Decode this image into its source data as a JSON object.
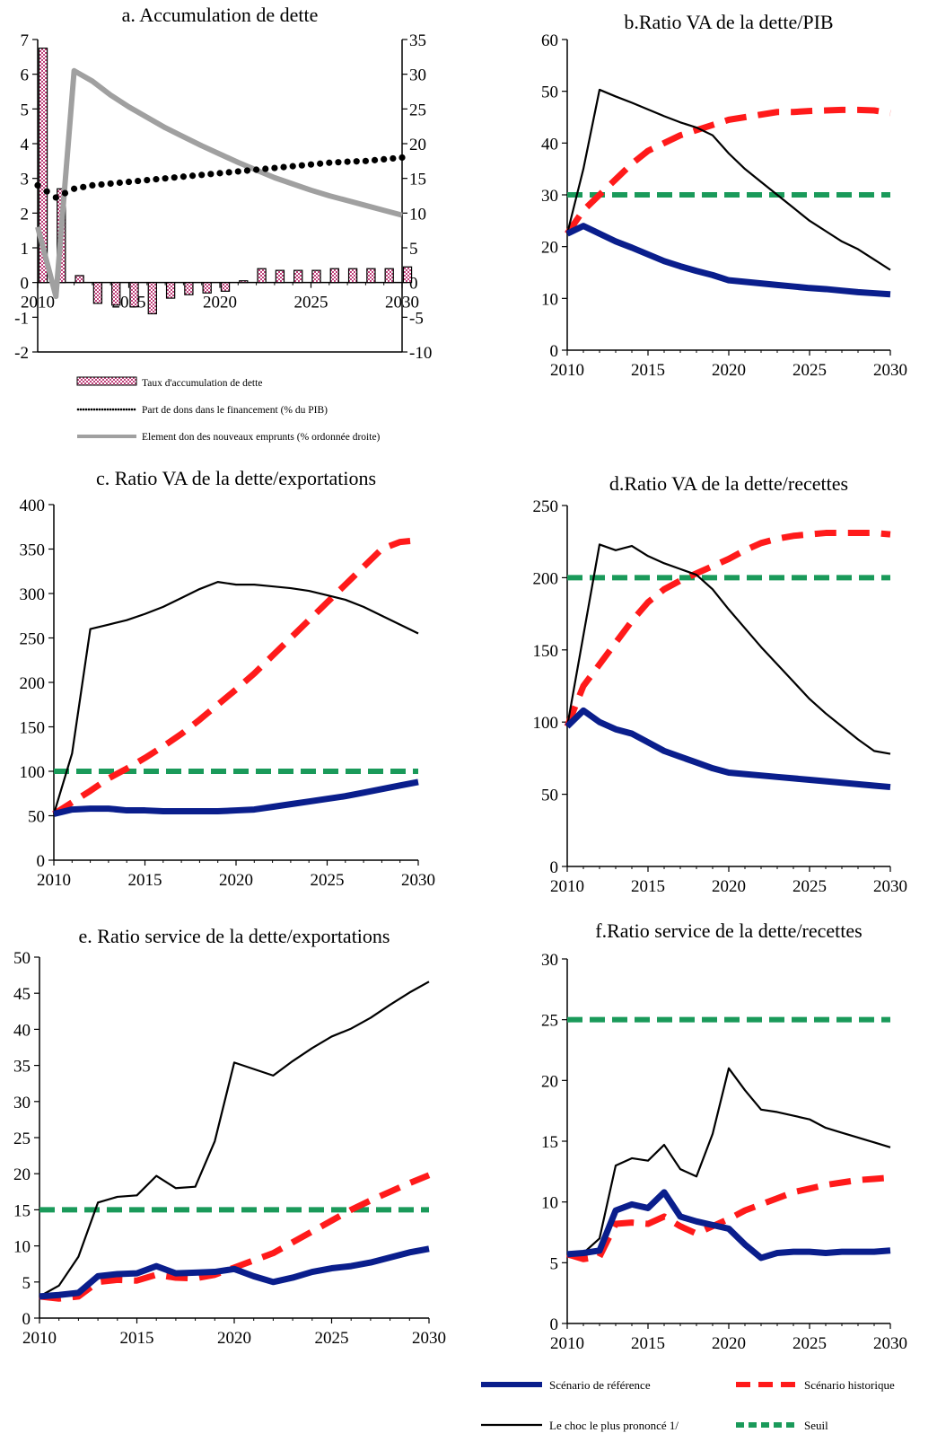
{
  "chart_data": [
    {
      "id": "a",
      "type": "bar",
      "title": "a. Accumulation de dette",
      "xlim": [
        2010,
        2030
      ],
      "xticks": [
        2010,
        2015,
        2020,
        2025,
        2030
      ],
      "ylim": [
        -2,
        7
      ],
      "yticks": [
        -2,
        -1,
        0,
        1,
        2,
        3,
        4,
        5,
        6,
        7
      ],
      "y2lim": [
        -10,
        35
      ],
      "y2ticks": [
        -10,
        -5,
        0,
        5,
        10,
        15,
        20,
        25,
        30,
        35
      ],
      "series": [
        {
          "name": "Taux d'accumulation de dette",
          "kind": "bar",
          "axis": "left",
          "color": "#c0407a",
          "x": [
            2010,
            2011,
            2012,
            2013,
            2014,
            2015,
            2016,
            2017,
            2018,
            2019,
            2020,
            2021,
            2022,
            2023,
            2024,
            2025,
            2026,
            2027,
            2028,
            2029,
            2030
          ],
          "values": [
            6.75,
            2.7,
            0.2,
            -0.6,
            -0.65,
            -0.7,
            -0.9,
            -0.45,
            -0.35,
            -0.3,
            -0.25,
            0.05,
            0.4,
            0.35,
            0.35,
            0.35,
            0.4,
            0.4,
            0.4,
            0.4,
            0.45
          ]
        },
        {
          "name": "Part de dons dans le financement (% du PIB)",
          "kind": "dotted",
          "axis": "left",
          "color": "#000000",
          "x": [
            2010,
            2011,
            2012,
            2013,
            2014,
            2015,
            2016,
            2017,
            2018,
            2019,
            2020,
            2021,
            2022,
            2023,
            2024,
            2025,
            2026,
            2027,
            2028,
            2029,
            2030
          ],
          "values": [
            2.8,
            2.45,
            2.7,
            2.8,
            2.85,
            2.9,
            2.95,
            3.0,
            3.05,
            3.1,
            3.15,
            3.2,
            3.25,
            3.3,
            3.35,
            3.4,
            3.45,
            3.48,
            3.5,
            3.55,
            3.6
          ]
        },
        {
          "name": "Element don des nouveaux emprunts (% ordonnée droite)",
          "kind": "line",
          "axis": "right",
          "color": "#a0a0a0",
          "x": [
            2010,
            2011,
            2012,
            2013,
            2014,
            2015,
            2016,
            2017,
            2018,
            2019,
            2020,
            2021,
            2022,
            2023,
            2024,
            2025,
            2026,
            2027,
            2028,
            2029,
            2030
          ],
          "values": [
            8,
            -2,
            30.5,
            29,
            27,
            25.3,
            23.8,
            22.3,
            21,
            19.7,
            18.5,
            17.3,
            16.2,
            15.1,
            14.2,
            13.3,
            12.5,
            11.8,
            11.1,
            10.4,
            9.7
          ]
        }
      ]
    },
    {
      "id": "b",
      "type": "line",
      "title": "b.Ratio VA de la dette/PIB",
      "xlim": [
        2010,
        2030
      ],
      "xticks": [
        2010,
        2015,
        2020,
        2025,
        2030
      ],
      "ylim": [
        0,
        60
      ],
      "yticks": [
        0,
        10,
        20,
        30,
        40,
        50,
        60
      ],
      "series": [
        {
          "role": "baseline",
          "x": [
            2010,
            2011,
            2012,
            2013,
            2014,
            2015,
            2016,
            2017,
            2018,
            2019,
            2020,
            2021,
            2022,
            2023,
            2024,
            2025,
            2026,
            2027,
            2028,
            2029,
            2030
          ],
          "values": [
            22.5,
            24,
            22.5,
            21,
            19.8,
            18.5,
            17.2,
            16.2,
            15.3,
            14.5,
            13.5,
            13.2,
            12.9,
            12.6,
            12.3,
            12,
            11.8,
            11.5,
            11.2,
            11,
            10.8
          ]
        },
        {
          "role": "historical",
          "x": [
            2010,
            2011,
            2012,
            2013,
            2014,
            2015,
            2016,
            2017,
            2018,
            2019,
            2020,
            2021,
            2022,
            2023,
            2024,
            2025,
            2026,
            2027,
            2028,
            2029,
            2030
          ],
          "values": [
            22.5,
            27,
            30,
            33,
            36,
            38.5,
            40,
            41.5,
            42.5,
            43.5,
            44.5,
            45,
            45.5,
            46,
            46,
            46.2,
            46.3,
            46.4,
            46.4,
            46.3,
            45.8
          ]
        },
        {
          "role": "shock",
          "x": [
            2010,
            2011,
            2012,
            2013,
            2014,
            2015,
            2016,
            2017,
            2018,
            2019,
            2020,
            2021,
            2022,
            2023,
            2024,
            2025,
            2026,
            2027,
            2028,
            2029,
            2030
          ],
          "values": [
            22.5,
            35,
            50.3,
            49,
            47.8,
            46.5,
            45.2,
            44,
            43,
            41.5,
            38,
            35,
            32.5,
            30,
            27.5,
            25,
            23,
            21,
            19.5,
            17.5,
            15.5
          ]
        },
        {
          "role": "threshold",
          "x": [
            2010,
            2030
          ],
          "values": [
            30,
            30
          ]
        }
      ]
    },
    {
      "id": "c",
      "type": "line",
      "title": "c. Ratio VA de la dette/exportations",
      "xlim": [
        2010,
        2030
      ],
      "xticks": [
        2010,
        2015,
        2020,
        2025,
        2030
      ],
      "ylim": [
        0,
        400
      ],
      "yticks": [
        0,
        50,
        100,
        150,
        200,
        250,
        300,
        350,
        400
      ],
      "series": [
        {
          "role": "baseline",
          "x": [
            2010,
            2011,
            2012,
            2013,
            2014,
            2015,
            2016,
            2017,
            2018,
            2019,
            2020,
            2021,
            2022,
            2023,
            2024,
            2025,
            2026,
            2027,
            2028,
            2029,
            2030
          ],
          "values": [
            52,
            57,
            58,
            58,
            56,
            56,
            55,
            55,
            55,
            55,
            56,
            57,
            60,
            63,
            66,
            69,
            72,
            76,
            80,
            84,
            88
          ]
        },
        {
          "role": "historical",
          "x": [
            2010,
            2011,
            2012,
            2013,
            2014,
            2015,
            2016,
            2017,
            2018,
            2019,
            2020,
            2021,
            2022,
            2023,
            2024,
            2025,
            2026,
            2027,
            2028,
            2029,
            2030
          ],
          "values": [
            52,
            65,
            78,
            92,
            103,
            115,
            128,
            142,
            158,
            175,
            192,
            210,
            230,
            250,
            270,
            290,
            310,
            330,
            350,
            358,
            360
          ]
        },
        {
          "role": "shock",
          "x": [
            2010,
            2011,
            2012,
            2013,
            2014,
            2015,
            2016,
            2017,
            2018,
            2019,
            2020,
            2021,
            2022,
            2023,
            2024,
            2025,
            2026,
            2027,
            2028,
            2029,
            2030
          ],
          "values": [
            52,
            120,
            260,
            265,
            270,
            277,
            285,
            295,
            305,
            313,
            310,
            310,
            308,
            306,
            303,
            298,
            293,
            285,
            275,
            265,
            255
          ]
        },
        {
          "role": "threshold",
          "x": [
            2010,
            2030
          ],
          "values": [
            100,
            100
          ]
        }
      ]
    },
    {
      "id": "d",
      "type": "line",
      "title": "d.Ratio VA de la dette/recettes",
      "xlim": [
        2010,
        2030
      ],
      "xticks": [
        2010,
        2015,
        2020,
        2025,
        2030
      ],
      "ylim": [
        0,
        250
      ],
      "yticks": [
        0,
        50,
        100,
        150,
        200,
        250
      ],
      "series": [
        {
          "role": "baseline",
          "x": [
            2010,
            2011,
            2012,
            2013,
            2014,
            2015,
            2016,
            2017,
            2018,
            2019,
            2020,
            2021,
            2022,
            2023,
            2024,
            2025,
            2026,
            2027,
            2028,
            2029,
            2030
          ],
          "values": [
            97,
            108,
            100,
            95,
            92,
            86,
            80,
            76,
            72,
            68,
            65,
            64,
            63,
            62,
            61,
            60,
            59,
            58,
            57,
            56,
            55
          ]
        },
        {
          "role": "historical",
          "x": [
            2010,
            2011,
            2012,
            2013,
            2014,
            2015,
            2016,
            2017,
            2018,
            2019,
            2020,
            2021,
            2022,
            2023,
            2024,
            2025,
            2026,
            2027,
            2028,
            2029,
            2030
          ],
          "values": [
            97,
            125,
            140,
            155,
            170,
            183,
            192,
            198,
            203,
            208,
            213,
            219,
            224,
            227,
            229,
            230,
            231,
            231,
            231,
            231,
            230
          ]
        },
        {
          "role": "shock",
          "x": [
            2010,
            2011,
            2012,
            2013,
            2014,
            2015,
            2016,
            2017,
            2018,
            2019,
            2020,
            2021,
            2022,
            2023,
            2024,
            2025,
            2026,
            2027,
            2028,
            2029,
            2030
          ],
          "values": [
            97,
            160,
            223,
            219,
            222,
            215,
            210,
            206,
            202,
            192,
            178,
            165,
            152,
            140,
            128,
            116,
            106,
            97,
            88,
            80,
            78
          ]
        },
        {
          "role": "threshold",
          "x": [
            2010,
            2030
          ],
          "values": [
            200,
            200
          ]
        }
      ]
    },
    {
      "id": "e",
      "type": "line",
      "title": "e. Ratio service de la dette/exportations",
      "xlim": [
        2010,
        2030
      ],
      "xticks": [
        2010,
        2015,
        2020,
        2025,
        2030
      ],
      "ylim": [
        0,
        50
      ],
      "yticks": [
        0,
        5,
        10,
        15,
        20,
        25,
        30,
        35,
        40,
        45,
        50
      ],
      "series": [
        {
          "role": "baseline",
          "x": [
            2010,
            2011,
            2012,
            2013,
            2014,
            2015,
            2016,
            2017,
            2018,
            2019,
            2020,
            2021,
            2022,
            2023,
            2024,
            2025,
            2026,
            2027,
            2028,
            2029,
            2030
          ],
          "values": [
            3,
            3.2,
            3.5,
            5.8,
            6.1,
            6.2,
            7.2,
            6.2,
            6.3,
            6.4,
            6.8,
            5.8,
            5,
            5.6,
            6.4,
            6.9,
            7.2,
            7.7,
            8.4,
            9.1,
            9.6
          ]
        },
        {
          "role": "historical",
          "x": [
            2010,
            2011,
            2012,
            2013,
            2014,
            2015,
            2016,
            2017,
            2018,
            2019,
            2020,
            2021,
            2022,
            2023,
            2024,
            2025,
            2026,
            2027,
            2028,
            2029,
            2030
          ],
          "values": [
            3,
            2.7,
            3,
            5,
            5.3,
            5.2,
            6,
            5.6,
            5.5,
            6,
            7,
            8,
            9,
            10.5,
            12,
            13.5,
            15,
            16.3,
            17.5,
            18.7,
            19.8
          ]
        },
        {
          "role": "shock",
          "x": [
            2010,
            2011,
            2012,
            2013,
            2014,
            2015,
            2016,
            2017,
            2018,
            2019,
            2020,
            2021,
            2022,
            2023,
            2024,
            2025,
            2026,
            2027,
            2028,
            2029,
            2030
          ],
          "values": [
            3,
            4.5,
            8.5,
            16,
            16.8,
            17,
            19.7,
            18,
            18.2,
            24.5,
            35.4,
            34.5,
            33.6,
            35.6,
            37.4,
            39,
            40.1,
            41.6,
            43.4,
            45.1,
            46.6
          ]
        },
        {
          "role": "threshold",
          "x": [
            2010,
            2030
          ],
          "values": [
            15,
            15
          ]
        }
      ]
    },
    {
      "id": "f",
      "type": "line",
      "title": "f.Ratio service de la dette/recettes",
      "xlim": [
        2010,
        2030
      ],
      "xticks": [
        2010,
        2015,
        2020,
        2025,
        2030
      ],
      "ylim": [
        0,
        30
      ],
      "yticks": [
        0,
        5,
        10,
        15,
        20,
        25,
        30
      ],
      "series": [
        {
          "role": "baseline",
          "x": [
            2010,
            2011,
            2012,
            2013,
            2014,
            2015,
            2016,
            2017,
            2018,
            2019,
            2020,
            2021,
            2022,
            2023,
            2024,
            2025,
            2026,
            2027,
            2028,
            2029,
            2030
          ],
          "values": [
            5.7,
            5.8,
            6,
            9.3,
            9.8,
            9.5,
            10.8,
            8.8,
            8.4,
            8.1,
            7.8,
            6.5,
            5.4,
            5.8,
            5.9,
            5.9,
            5.8,
            5.9,
            5.9,
            5.9,
            6
          ]
        },
        {
          "role": "historical",
          "x": [
            2010,
            2011,
            2012,
            2013,
            2014,
            2015,
            2016,
            2017,
            2018,
            2019,
            2020,
            2021,
            2022,
            2023,
            2024,
            2025,
            2026,
            2027,
            2028,
            2029,
            2030
          ],
          "values": [
            5.7,
            5.3,
            5.5,
            8.2,
            8.3,
            8.2,
            8.8,
            8,
            7.4,
            8,
            8.6,
            9.3,
            9.8,
            10.3,
            10.8,
            11.1,
            11.4,
            11.6,
            11.8,
            11.9,
            12
          ]
        },
        {
          "role": "shock",
          "x": [
            2010,
            2011,
            2012,
            2013,
            2014,
            2015,
            2016,
            2017,
            2018,
            2019,
            2020,
            2021,
            2022,
            2023,
            2024,
            2025,
            2026,
            2027,
            2028,
            2029,
            2030
          ],
          "values": [
            5.7,
            5.8,
            7,
            13,
            13.6,
            13.4,
            14.7,
            12.7,
            12.1,
            15.6,
            21,
            19.2,
            17.6,
            17.4,
            17.1,
            16.8,
            16.1,
            15.7,
            15.3,
            14.9,
            14.5
          ]
        },
        {
          "role": "threshold",
          "x": [
            2010,
            2030
          ],
          "values": [
            25,
            25
          ]
        }
      ]
    }
  ],
  "legend": {
    "items": [
      {
        "role": "baseline",
        "label": "Scénario de référence",
        "color": "#0a1e8c"
      },
      {
        "role": "historical",
        "label": "Scénario historique",
        "color": "#ff1a1a"
      },
      {
        "role": "shock",
        "label": "Le choc le plus prononcé  1/",
        "color": "#000000"
      },
      {
        "role": "threshold",
        "label": "Seuil",
        "color": "#1a9a5a"
      }
    ]
  }
}
